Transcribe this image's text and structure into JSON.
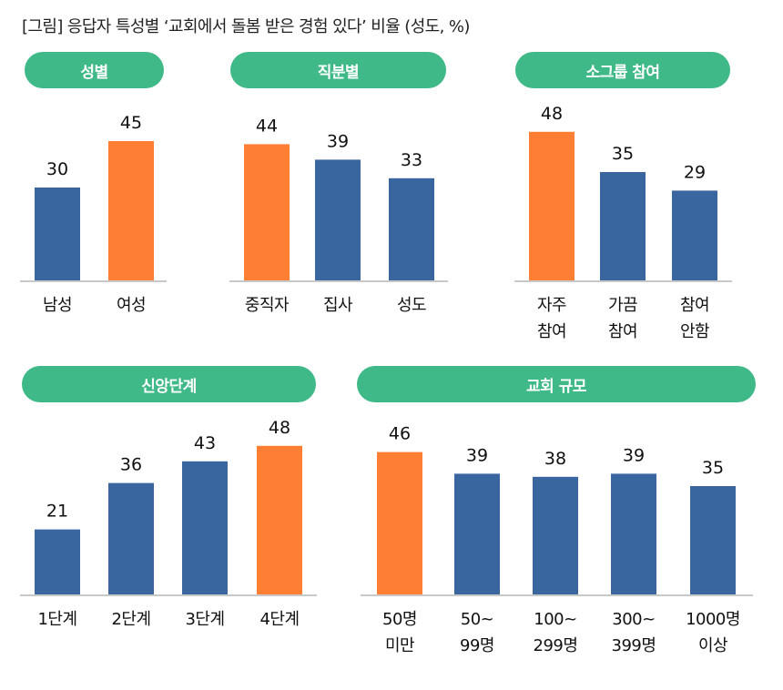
{
  "title": "[그림] 응답자 특성별 ‘교회에서 돌봄 받은 경험 있다’ 비율 (성도, %)",
  "colors": {
    "pill": "#3EB987",
    "bar": "#3A66A0",
    "highlight": "#FE7F33",
    "baseline": "#C8C8C8"
  },
  "chart_data": [
    {
      "type": "bar",
      "title": "성별",
      "categories": [
        [
          "남성"
        ],
        [
          "여성"
        ]
      ],
      "values": [
        30,
        45
      ],
      "highlight_index": 1,
      "ylim": [
        0,
        50
      ]
    },
    {
      "type": "bar",
      "title": "직분별",
      "categories": [
        [
          "중직자"
        ],
        [
          "집사"
        ],
        [
          "성도"
        ]
      ],
      "values": [
        44,
        39,
        33
      ],
      "highlight_index": 0,
      "ylim": [
        0,
        50
      ]
    },
    {
      "type": "bar",
      "title": "소그룹 참여",
      "categories": [
        [
          "자주",
          "참여"
        ],
        [
          "가끔",
          "참여"
        ],
        [
          "참여",
          "안함"
        ]
      ],
      "values": [
        48,
        35,
        29
      ],
      "highlight_index": 0,
      "ylim": [
        0,
        50
      ]
    },
    {
      "type": "bar",
      "title": "신앙단계",
      "categories": [
        [
          "1단계"
        ],
        [
          "2단계"
        ],
        [
          "3단계"
        ],
        [
          "4단계"
        ]
      ],
      "values": [
        21,
        36,
        43,
        48
      ],
      "highlight_index": 3,
      "ylim": [
        0,
        50
      ]
    },
    {
      "type": "bar",
      "title": "교회 규모",
      "categories": [
        [
          "50명",
          "미만"
        ],
        [
          "50~",
          "99명"
        ],
        [
          "100~",
          "299명"
        ],
        [
          "300~",
          "399명"
        ],
        [
          "1000명",
          "이상"
        ]
      ],
      "values": [
        46,
        39,
        38,
        39,
        35
      ],
      "highlight_index": 0,
      "ylim": [
        0,
        50
      ]
    }
  ]
}
